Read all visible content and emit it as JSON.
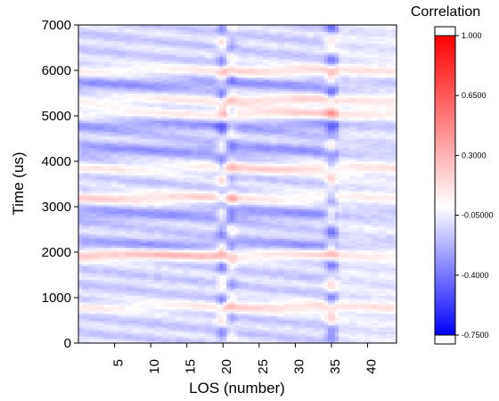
{
  "chart_data": {
    "type": "heatmap",
    "title": "",
    "xlabel": "LOS (number)",
    "ylabel": "Time (us)",
    "xlim": [
      0,
      44
    ],
    "ylim": [
      0,
      7000
    ],
    "x_ticks": [
      5,
      10,
      15,
      20,
      25,
      30,
      35,
      40
    ],
    "y_ticks": [
      0,
      1000,
      2000,
      3000,
      4000,
      5000,
      6000,
      7000
    ],
    "x_tick_labels": [
      "5",
      "10",
      "15",
      "20",
      "25",
      "30",
      "35",
      "40"
    ],
    "y_tick_labels": [
      "0",
      "1000",
      "2000",
      "3000",
      "4000",
      "5000",
      "6000",
      "7000"
    ],
    "colorbar": {
      "title": "Correlation",
      "range": [
        -0.75,
        1.0
      ],
      "tick_values": [
        1.0,
        0.65,
        0.3,
        -0.05,
        -0.4,
        -0.75
      ],
      "tick_labels": [
        "1.000",
        "0.6500",
        "0.3000",
        "-0.05000",
        "-0.4000",
        "-0.7500"
      ],
      "colors": {
        "max": "#ff0000",
        "mid": "#ffffff",
        "min": "#0000ff"
      }
    },
    "grid": false,
    "approx_features": {
      "positive_bands_time_us": [
        800,
        1950,
        3200,
        3850,
        5050,
        5350,
        6000
      ],
      "negative_bands_time_us": [
        2150,
        2850,
        4250,
        4800,
        5700
      ],
      "discontinuity_los": [
        20,
        21,
        35
      ]
    }
  }
}
